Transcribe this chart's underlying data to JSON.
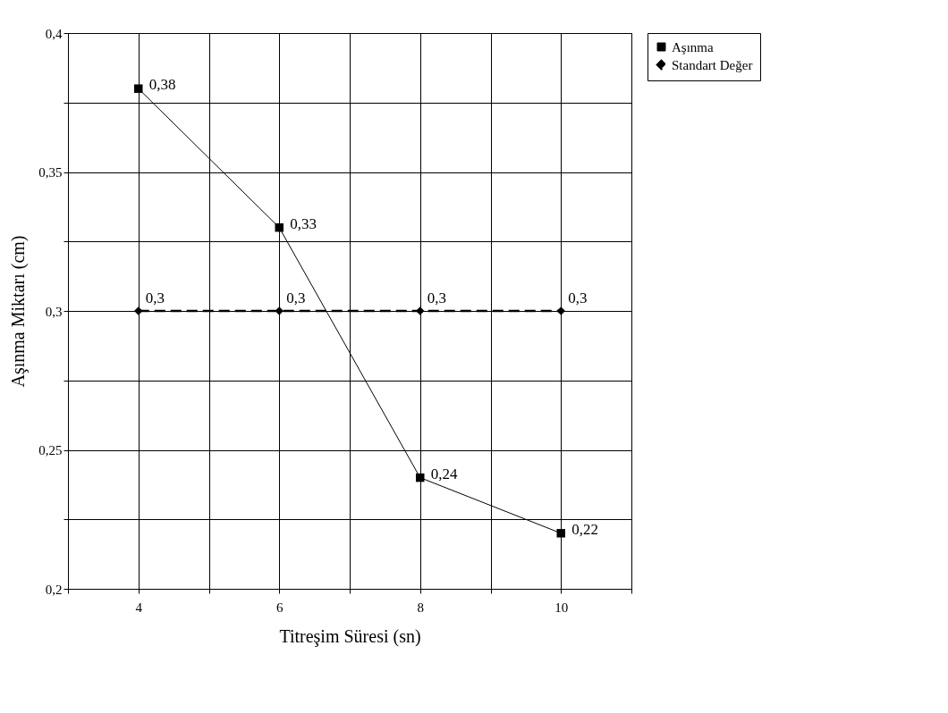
{
  "chart_data": {
    "type": "line",
    "xlabel": "Titreşim Süresi (sn)",
    "ylabel": "Aşınma Miktarı (cm)",
    "x": [
      4,
      6,
      8,
      10
    ],
    "xlim": [
      3,
      11
    ],
    "xticks": [
      {
        "value": 3,
        "label": null
      },
      {
        "value": 4,
        "label": "4"
      },
      {
        "value": 5,
        "label": null
      },
      {
        "value": 6,
        "label": "6"
      },
      {
        "value": 7,
        "label": null
      },
      {
        "value": 8,
        "label": "8"
      },
      {
        "value": 9,
        "label": null
      },
      {
        "value": 10,
        "label": "10"
      },
      {
        "value": 11,
        "label": null
      }
    ],
    "ylim": [
      0.2,
      0.4
    ],
    "yticks": [
      {
        "value": 0.2,
        "label": "0,2"
      },
      {
        "value": 0.225,
        "label": null
      },
      {
        "value": 0.25,
        "label": "0,25"
      },
      {
        "value": 0.275,
        "label": null
      },
      {
        "value": 0.3,
        "label": "0,3"
      },
      {
        "value": 0.325,
        "label": null
      },
      {
        "value": 0.35,
        "label": "0,35"
      },
      {
        "value": 0.375,
        "label": null
      },
      {
        "value": 0.4,
        "label": "0,4"
      }
    ],
    "grid": true,
    "legend": "right",
    "series": [
      {
        "name": "Aşınma",
        "color": "#000000",
        "marker": "square",
        "line_style": "solid",
        "values": [
          0.38,
          0.33,
          0.24,
          0.22
        ],
        "value_labels": [
          "0,38",
          "0,33",
          "0,24",
          "0,22"
        ]
      },
      {
        "name": "Standart Değer",
        "color": "#000000",
        "marker": "diamond",
        "line_style": "dashed",
        "values": [
          0.3,
          0.3,
          0.3,
          0.3
        ],
        "value_labels": [
          "0,3",
          "0,3",
          "0,3",
          "0,3"
        ]
      }
    ]
  }
}
